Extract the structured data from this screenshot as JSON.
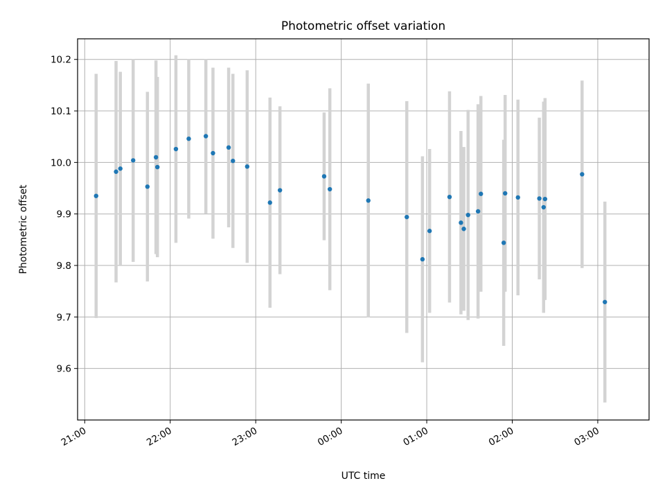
{
  "chart_data": {
    "type": "scatter",
    "title": "Photometric offset variation",
    "xlabel": "UTC time",
    "ylabel": "Photometric offset",
    "x_tick_labels": [
      "21:00",
      "22:00",
      "23:00",
      "00:00",
      "01:00",
      "02:00",
      "03:00"
    ],
    "y_tick_labels": [
      "9.6",
      "9.7",
      "9.8",
      "9.9",
      "10.0",
      "10.1",
      "10.2"
    ],
    "y_ticks": [
      9.6,
      9.7,
      9.8,
      9.9,
      10.0,
      10.1,
      10.2
    ],
    "xlim": [
      "20:55",
      "03:36"
    ],
    "ylim": [
      9.5,
      10.24
    ],
    "grid": true,
    "colors": {
      "point": "#1f77b4",
      "errorbar": "#d3d3d3",
      "grid": "#b0b0b0"
    },
    "points": [
      {
        "t": "21:08",
        "y": 9.935,
        "err": 0.237
      },
      {
        "t": "21:22",
        "y": 9.982,
        "err": 0.215
      },
      {
        "t": "21:25",
        "y": 9.988,
        "err": 0.188
      },
      {
        "t": "21:34",
        "y": 10.004,
        "err": 0.197
      },
      {
        "t": "21:44",
        "y": 9.953,
        "err": 0.184
      },
      {
        "t": "21:50",
        "y": 10.01,
        "err": 0.188
      },
      {
        "t": "21:51",
        "y": 9.991,
        "err": 0.175
      },
      {
        "t": "22:04",
        "y": 10.026,
        "err": 0.182
      },
      {
        "t": "22:13",
        "y": 10.046,
        "err": 0.155
      },
      {
        "t": "22:25",
        "y": 10.051,
        "err": 0.15
      },
      {
        "t": "22:30",
        "y": 10.018,
        "err": 0.166
      },
      {
        "t": "22:41",
        "y": 10.029,
        "err": 0.155
      },
      {
        "t": "22:44",
        "y": 10.003,
        "err": 0.169
      },
      {
        "t": "22:54",
        "y": 9.992,
        "err": 0.187
      },
      {
        "t": "23:10",
        "y": 9.922,
        "err": 0.204
      },
      {
        "t": "23:17",
        "y": 9.946,
        "err": 0.163
      },
      {
        "t": "23:48",
        "y": 9.973,
        "err": 0.124
      },
      {
        "t": "23:52",
        "y": 9.948,
        "err": 0.196
      },
      {
        "t": "00:19",
        "y": 9.926,
        "err": 0.227
      },
      {
        "t": "00:46",
        "y": 9.894,
        "err": 0.225
      },
      {
        "t": "00:57",
        "y": 9.812,
        "err": 0.2
      },
      {
        "t": "01:02",
        "y": 9.867,
        "err": 0.159
      },
      {
        "t": "01:16",
        "y": 9.933,
        "err": 0.205
      },
      {
        "t": "01:24",
        "y": 9.883,
        "err": 0.178
      },
      {
        "t": "01:26",
        "y": 9.871,
        "err": 0.159
      },
      {
        "t": "01:29",
        "y": 9.898,
        "err": 0.204
      },
      {
        "t": "01:36",
        "y": 9.905,
        "err": 0.208
      },
      {
        "t": "01:38",
        "y": 9.939,
        "err": 0.19
      },
      {
        "t": "01:54",
        "y": 9.844,
        "err": 0.2
      },
      {
        "t": "01:55",
        "y": 9.94,
        "err": 0.191
      },
      {
        "t": "02:04",
        "y": 9.932,
        "err": 0.19
      },
      {
        "t": "02:19",
        "y": 9.93,
        "err": 0.157
      },
      {
        "t": "02:22",
        "y": 9.913,
        "err": 0.205
      },
      {
        "t": "02:23",
        "y": 9.929,
        "err": 0.196
      },
      {
        "t": "02:49",
        "y": 9.977,
        "err": 0.182
      },
      {
        "t": "03:05",
        "y": 9.729,
        "err": 0.195
      }
    ]
  }
}
